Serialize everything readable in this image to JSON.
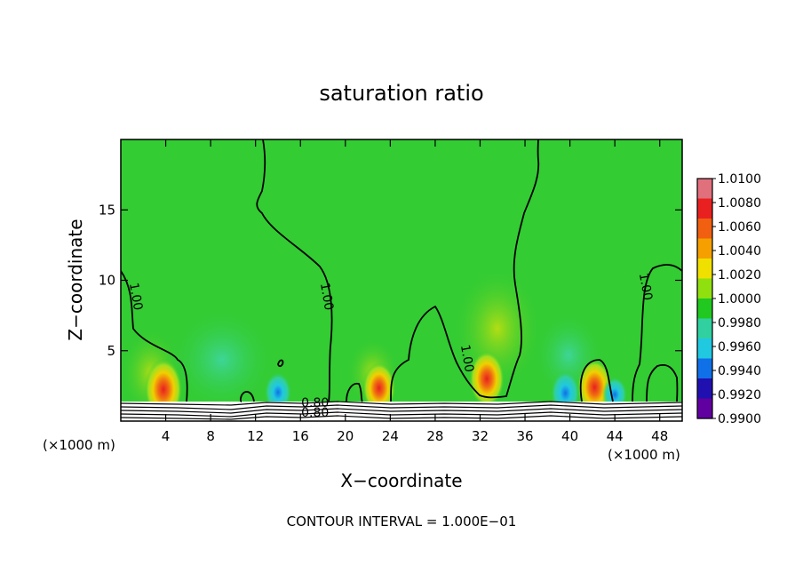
{
  "chart_data": {
    "type": "heatmap",
    "title": "saturation ratio",
    "xlabel": "X−coordinate",
    "ylabel": "Z−coordinate",
    "x_unit_left": "(×1000 m)",
    "x_unit_right": "(×1000 m)",
    "footer": "CONTOUR INTERVAL = 1.000E−01",
    "xlim": [
      0,
      50
    ],
    "ylim": [
      0,
      20
    ],
    "x_ticks": [
      4,
      8,
      12,
      16,
      20,
      24,
      28,
      32,
      36,
      40,
      44,
      48
    ],
    "y_ticks": [
      5,
      10,
      15
    ],
    "colorbar": {
      "labels": [
        "1.0100",
        "1.0080",
        "1.0060",
        "1.0040",
        "1.0020",
        "1.0000",
        "0.9980",
        "0.9960",
        "0.9940",
        "0.9920",
        "0.9900"
      ],
      "colors": [
        "#e0707c",
        "#e82020",
        "#f06010",
        "#f5a000",
        "#f0e000",
        "#90e010",
        "#20c820",
        "#30d0a0",
        "#20c8e0",
        "#1070e8",
        "#2010b0",
        "#6000a0"
      ]
    },
    "background_color": "#33cc33",
    "contour_labels": [
      {
        "text": "1.00",
        "x": 1.0,
        "z": 8.8
      },
      {
        "text": "1.00",
        "x": 18.0,
        "z": 8.8
      },
      {
        "text": "1.00",
        "x": 30.5,
        "z": 4.4
      },
      {
        "text": "1.00",
        "x": 46.4,
        "z": 9.5
      },
      {
        "text": "0.80",
        "x": 17.3,
        "z": 1.0
      },
      {
        "text": "0.80",
        "x": 17.3,
        "z": 0.3
      }
    ],
    "anomalies": [
      {
        "x": 3.8,
        "z": 1.6,
        "level": 1.008
      },
      {
        "x": 23.0,
        "z": 1.8,
        "level": 1.006
      },
      {
        "x": 32.6,
        "z": 2.4,
        "level": 1.007
      },
      {
        "x": 42.2,
        "z": 1.8,
        "level": 1.007
      },
      {
        "x": 14.0,
        "z": 1.6,
        "level": 0.996
      },
      {
        "x": 39.6,
        "z": 1.5,
        "level": 0.995
      },
      {
        "x": 44.0,
        "z": 1.5,
        "level": 0.997
      }
    ]
  }
}
